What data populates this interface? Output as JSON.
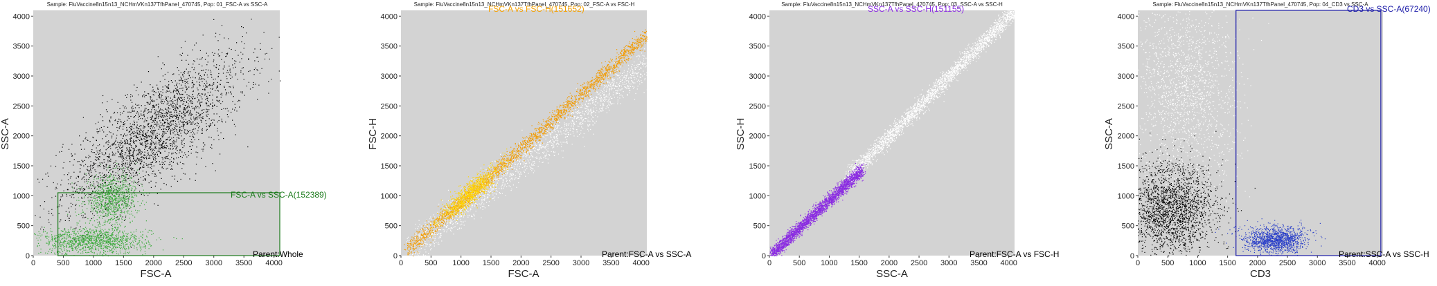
{
  "panels": [
    {
      "sample": "Sample: FluVaccine8n15n13_NCHmVKn137TfhPanel_470745, Pop: 01_FSC-A vs SSC-A",
      "xlabel": "FSC-A",
      "ylabel": "SSC-A",
      "gate_label": "FSC-A vs SSC-A(152389)",
      "gate_color": "#1a7a1a",
      "parent": "Parent:Whole",
      "gate_rect": [
        410,
        0,
        4096,
        1050
      ],
      "populations": [
        {
          "color": "#000000",
          "role": "ungated",
          "cx": 2000,
          "cy": 2050,
          "sx": 750,
          "sy": 650,
          "rho": 0.75,
          "n": 2600
        },
        {
          "color": "#3cab3c",
          "role": "gated",
          "cx": 1300,
          "cy": 950,
          "sx": 220,
          "sy": 200,
          "rho": 0.1,
          "n": 900
        },
        {
          "color": "#3cab3c",
          "role": "gated",
          "cx": 1000,
          "cy": 250,
          "sx": 450,
          "sy": 110,
          "rho": 0.0,
          "n": 1200
        }
      ]
    },
    {
      "sample": "Sample: FluVaccine8n15n13_NCHmVKn137TfhPanel_470745, Pop: 02_FSC-A vs FSC-H",
      "xlabel": "FSC-A",
      "ylabel": "FSC-H",
      "gate_label": "FSC-A vs FSC-H(151652)",
      "gate_color": "#f4a000",
      "parent": "Parent:FSC-A vs SSC-A",
      "populations": [
        {
          "color": "#ffffff",
          "role": "ungated",
          "line": true,
          "slope": 0.78,
          "x0": 200,
          "x1": 4096,
          "spread": 140,
          "n": 1800
        },
        {
          "color": "#f29b00",
          "role": "gated",
          "line": true,
          "slope": 0.9,
          "x0": 100,
          "x1": 4096,
          "spread": 70,
          "n": 2400
        },
        {
          "color": "#ffd400",
          "role": "gated",
          "cx": 1150,
          "cy": 1050,
          "sx": 250,
          "sy": 230,
          "rho": 0.9,
          "n": 900
        }
      ]
    },
    {
      "sample": "Sample: FluVaccine8n15n13_NCHmVKn137TfhPanel_470745, Pop: 03_SSC-A vs SSC-H",
      "xlabel": "SSC-A",
      "ylabel": "SSC-H",
      "gate_label": "SSC-A vs SSC-H(151155)",
      "gate_color": "#8a2be2",
      "parent": "Parent:FSC-A vs FSC-H",
      "populations": [
        {
          "color": "#ffffff",
          "role": "ungated",
          "line": true,
          "slope": 1.0,
          "x0": 1300,
          "x1": 4096,
          "spread": 70,
          "n": 2600
        },
        {
          "color": "#8a2be2",
          "role": "gated",
          "line": true,
          "slope": 0.93,
          "x0": 20,
          "x1": 1550,
          "spread": 55,
          "n": 2600
        }
      ]
    },
    {
      "sample": "Sample: FluVaccine8n15n13_NCHmVKn137TfhPanel_470745, Pop: 04_CD3 vs SSC-A",
      "xlabel": "CD3",
      "ylabel": "SSC-A",
      "gate_label": "CD3 vs SSC-A(67240)",
      "gate_color": "#1a1aa8",
      "parent": "Parent:SSC-A vs SSC-H",
      "gate_rect": [
        1640,
        0,
        4060,
        4096
      ],
      "populations": [
        {
          "color": "#ffffff",
          "role": "ungated",
          "cx": 800,
          "cy": 2700,
          "sx": 420,
          "sy": 800,
          "rho": -0.1,
          "n": 1800
        },
        {
          "color": "#000000",
          "role": "ungated",
          "cx": 550,
          "cy": 800,
          "sx": 380,
          "sy": 380,
          "rho": 0.0,
          "n": 2200
        },
        {
          "color": "#2a3fc8",
          "role": "gated",
          "cx": 2300,
          "cy": 270,
          "sx": 260,
          "sy": 110,
          "rho": 0.0,
          "n": 1300
        }
      ]
    }
  ],
  "chart_data": [
    {
      "type": "scatter",
      "title": "Sample: FluVaccine8n15n13_NCHmVKn137TfhPanel_470745, Pop: 01_FSC-A vs SSC-A",
      "xlabel": "FSC-A",
      "ylabel": "SSC-A",
      "xlim": [
        0,
        4096
      ],
      "ylim": [
        0,
        4096
      ],
      "xticks": [
        0,
        500,
        1000,
        1500,
        2000,
        2500,
        3000,
        3500,
        4000
      ],
      "yticks": [
        0,
        500,
        1000,
        1500,
        2000,
        2500,
        3000,
        3500,
        4000
      ],
      "annotations": [
        "FSC-A vs SSC-A(152389)",
        "Parent:Whole"
      ]
    },
    {
      "type": "scatter",
      "title": "Sample: FluVaccine8n15n13_NCHmVKn137TfhPanel_470745, Pop: 02_FSC-A vs FSC-H",
      "xlabel": "FSC-A",
      "ylabel": "FSC-H",
      "xlim": [
        0,
        4096
      ],
      "ylim": [
        0,
        4096
      ],
      "xticks": [
        0,
        500,
        1000,
        1500,
        2000,
        2500,
        3000,
        3500,
        4000
      ],
      "yticks": [
        0,
        500,
        1000,
        1500,
        2000,
        2500,
        3000,
        3500,
        4000
      ],
      "annotations": [
        "FSC-A vs FSC-H(151652)",
        "Parent:FSC-A vs SSC-A"
      ]
    },
    {
      "type": "scatter",
      "title": "Sample: FluVaccine8n15n13_NCHmVKn137TfhPanel_470745, Pop: 03_SSC-A vs SSC-H",
      "xlabel": "SSC-A",
      "ylabel": "SSC-H",
      "xlim": [
        0,
        4096
      ],
      "ylim": [
        0,
        4096
      ],
      "xticks": [
        0,
        500,
        1000,
        1500,
        2000,
        2500,
        3000,
        3500,
        4000
      ],
      "yticks": [
        0,
        500,
        1000,
        1500,
        2000,
        2500,
        3000,
        3500,
        4000
      ],
      "annotations": [
        "SSC-A vs SSC-H(151155)",
        "Parent:FSC-A vs FSC-H"
      ]
    },
    {
      "type": "scatter",
      "title": "Sample: FluVaccine8n15n13_NCHmVKn137TfhPanel_470745, Pop: 04_CD3 vs SSC-A",
      "xlabel": "CD3",
      "ylabel": "SSC-A",
      "xlim": [
        0,
        4096
      ],
      "ylim": [
        0,
        4096
      ],
      "xticks": [
        0,
        500,
        1000,
        1500,
        2000,
        2500,
        3000,
        3500,
        4000
      ],
      "yticks": [
        0,
        500,
        1000,
        1500,
        2000,
        2500,
        3000,
        3500,
        4000
      ],
      "annotations": [
        "CD3 vs SSC-A(67240)",
        "Parent:SSC-A vs SSC-H"
      ]
    }
  ]
}
